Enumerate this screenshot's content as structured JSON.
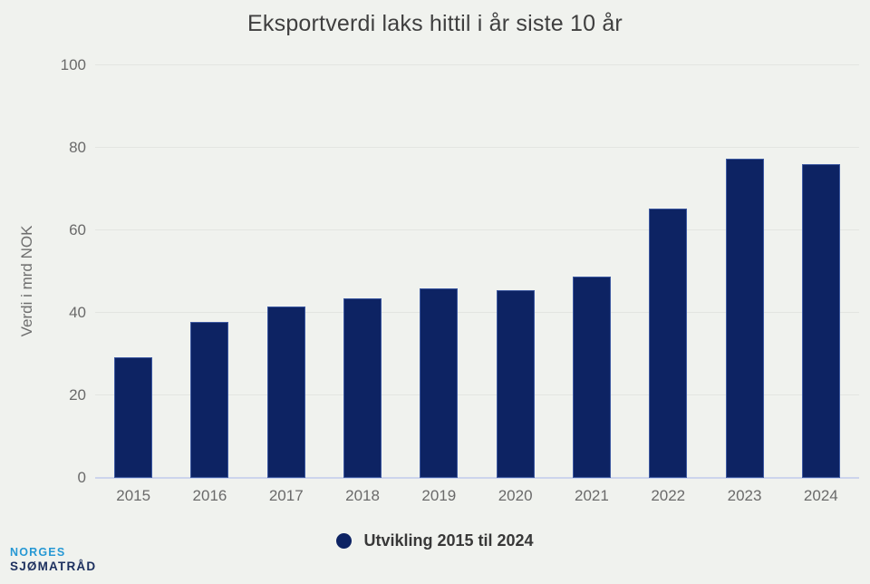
{
  "chart": {
    "title": "Eksportverdi laks hittil i år siste 10 år",
    "y_axis_title": "Verdi i mrd NOK",
    "legend_label": "Utvikling 2015 til 2024"
  },
  "chart_data": {
    "type": "bar",
    "title": "Eksportverdi laks hittil i år siste 10 år",
    "categories": [
      "2015",
      "2016",
      "2017",
      "2018",
      "2019",
      "2020",
      "2021",
      "2022",
      "2023",
      "2024"
    ],
    "values": [
      29.2,
      37.8,
      41.5,
      43.5,
      45.9,
      45.5,
      48.8,
      65.3,
      77.4,
      76.0
    ],
    "series_name": "Utvikling 2015 til 2024",
    "xlabel": "",
    "ylabel": "Verdi i mrd NOK",
    "ylim": [
      0,
      100
    ],
    "yticks": [
      0,
      20,
      40,
      60,
      80,
      100
    ],
    "grid": true,
    "legend_position": "bottom",
    "colors": {
      "bar_fill": "#0d2363",
      "bar_border": "#3d59a1",
      "background": "#f0f2ee",
      "gridline": "#e3e5e1",
      "axis_line": "#ccd4ec",
      "tick_label": "#6a6a6a",
      "title": "#3f3f3f"
    }
  },
  "logo": {
    "line1": "NORGES",
    "line2": "SJØMATRÅD",
    "line1_color": "#2698d4",
    "line2_color": "#1c2f5e"
  }
}
